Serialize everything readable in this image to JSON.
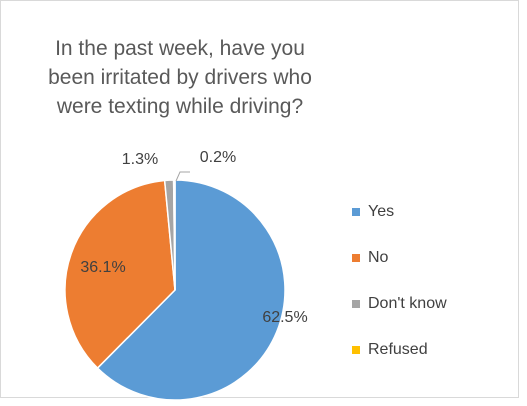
{
  "chart_data": {
    "type": "pie",
    "title": "In the past week, have you been irritated by drivers who were texting while driving?",
    "categories": [
      "Yes",
      "No",
      "Don't know",
      "Refused"
    ],
    "values": [
      62.5,
      36.1,
      1.3,
      0.2
    ],
    "value_labels": [
      "62.5%",
      "36.1%",
      "1.3%",
      "0.2%"
    ],
    "colors": [
      "#5b9bd5",
      "#ed7d31",
      "#a5a5a5",
      "#ffc000"
    ],
    "legend": "right"
  }
}
